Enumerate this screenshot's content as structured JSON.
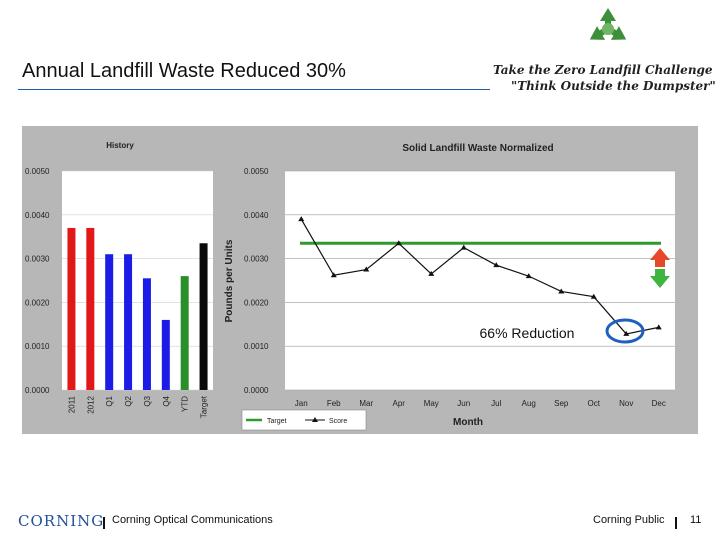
{
  "slide": {
    "title": "Annual Landfill Waste Reduced 30%",
    "logo_icon": "recycle-icon",
    "challenge_line1": "Take the Zero Landfill Challenge",
    "challenge_line2": "\"Think Outside the Dumpster\"",
    "annotation": "66% Reduction",
    "footer_company": "CORNING",
    "footer_division": "Corning Optical Communications",
    "footer_classification": "Corning Public",
    "page_number": "11"
  },
  "colors": {
    "accent_rule": "#1f5fa8",
    "target_line": "#2e9a2e",
    "plot_bg": "#ffffff",
    "panel_bg": "#b7b7b7",
    "red": "#e01818",
    "blue": "#1c1ce6",
    "green": "#2a8f2a",
    "black": "#0a0a0a"
  },
  "chart_data": [
    {
      "type": "bar",
      "title": "History",
      "categories": [
        "2011",
        "2012",
        "Q1",
        "Q2",
        "Q3",
        "Q4",
        "YTD",
        "Target"
      ],
      "values": [
        0.0037,
        0.0037,
        0.0031,
        0.0031,
        0.00255,
        0.0016,
        0.0026,
        0.00335
      ],
      "bar_colors": [
        "red",
        "red",
        "blue",
        "blue",
        "blue",
        "blue",
        "green",
        "black"
      ],
      "yticks": [
        "0.0000",
        "0.0010",
        "0.0020",
        "0.0030",
        "0.0040",
        "0.0050"
      ],
      "ylim": [
        0,
        0.005
      ]
    },
    {
      "type": "line",
      "title": "Solid Landfill Waste Normalized",
      "xlabel": "Month",
      "ylabel": "Pounds per Units",
      "categories": [
        "Jan",
        "Feb",
        "Mar",
        "Apr",
        "May",
        "Jun",
        "Jul",
        "Aug",
        "Sep",
        "Oct",
        "Nov",
        "Dec"
      ],
      "yticks": [
        "0.0000",
        "0.0010",
        "0.0020",
        "0.0030",
        "0.0040",
        "0.0050"
      ],
      "ylim": [
        0,
        0.005
      ],
      "series": [
        {
          "name": "Target",
          "values": [
            0.00335,
            0.00335,
            0.00335,
            0.00335,
            0.00335,
            0.00335,
            0.00335,
            0.00335,
            0.00335,
            0.00335,
            0.00335,
            0.00335
          ]
        },
        {
          "name": "Score",
          "values": [
            0.0039,
            0.00262,
            0.00275,
            0.00335,
            0.00265,
            0.00325,
            0.00285,
            0.0026,
            0.00225,
            0.00213,
            0.00128,
            0.00143
          ]
        }
      ],
      "legend": [
        "Target",
        "Score"
      ]
    }
  ]
}
